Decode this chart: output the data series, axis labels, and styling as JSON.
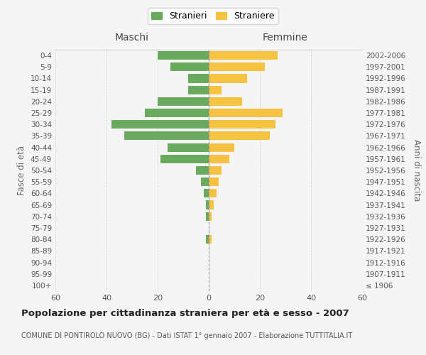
{
  "age_groups": [
    "100+",
    "95-99",
    "90-94",
    "85-89",
    "80-84",
    "75-79",
    "70-74",
    "65-69",
    "60-64",
    "55-59",
    "50-54",
    "45-49",
    "40-44",
    "35-39",
    "30-34",
    "25-29",
    "20-24",
    "15-19",
    "10-14",
    "5-9",
    "0-4"
  ],
  "birth_years": [
    "≤ 1906",
    "1907-1911",
    "1912-1916",
    "1917-1921",
    "1922-1926",
    "1927-1931",
    "1932-1936",
    "1937-1941",
    "1942-1946",
    "1947-1951",
    "1952-1956",
    "1957-1961",
    "1962-1966",
    "1967-1971",
    "1972-1976",
    "1977-1981",
    "1982-1986",
    "1987-1991",
    "1992-1996",
    "1997-2001",
    "2002-2006"
  ],
  "maschi": [
    0,
    0,
    0,
    0,
    1,
    0,
    1,
    1,
    2,
    3,
    5,
    19,
    16,
    33,
    38,
    25,
    20,
    8,
    8,
    15,
    20
  ],
  "femmine": [
    0,
    0,
    0,
    0,
    1,
    0,
    1,
    2,
    3,
    4,
    5,
    8,
    10,
    24,
    26,
    29,
    13,
    5,
    15,
    22,
    27
  ],
  "maschi_color": "#6aaa5f",
  "femmine_color": "#f5c242",
  "title": "Popolazione per cittadinanza straniera per età e sesso - 2007",
  "subtitle": "COMUNE DI PONTIROLO NUOVO (BG) - Dati ISTAT 1° gennaio 2007 - Elaborazione TUTTITALIA.IT",
  "xlabel_left": "Maschi",
  "xlabel_right": "Femmine",
  "ylabel_left": "Fasce di età",
  "ylabel_right": "Anni di nascita",
  "xlim": 60,
  "legend_stranieri": "Stranieri",
  "legend_straniere": "Straniere",
  "background_color": "#f5f5f5",
  "grid_color": "#cccccc"
}
